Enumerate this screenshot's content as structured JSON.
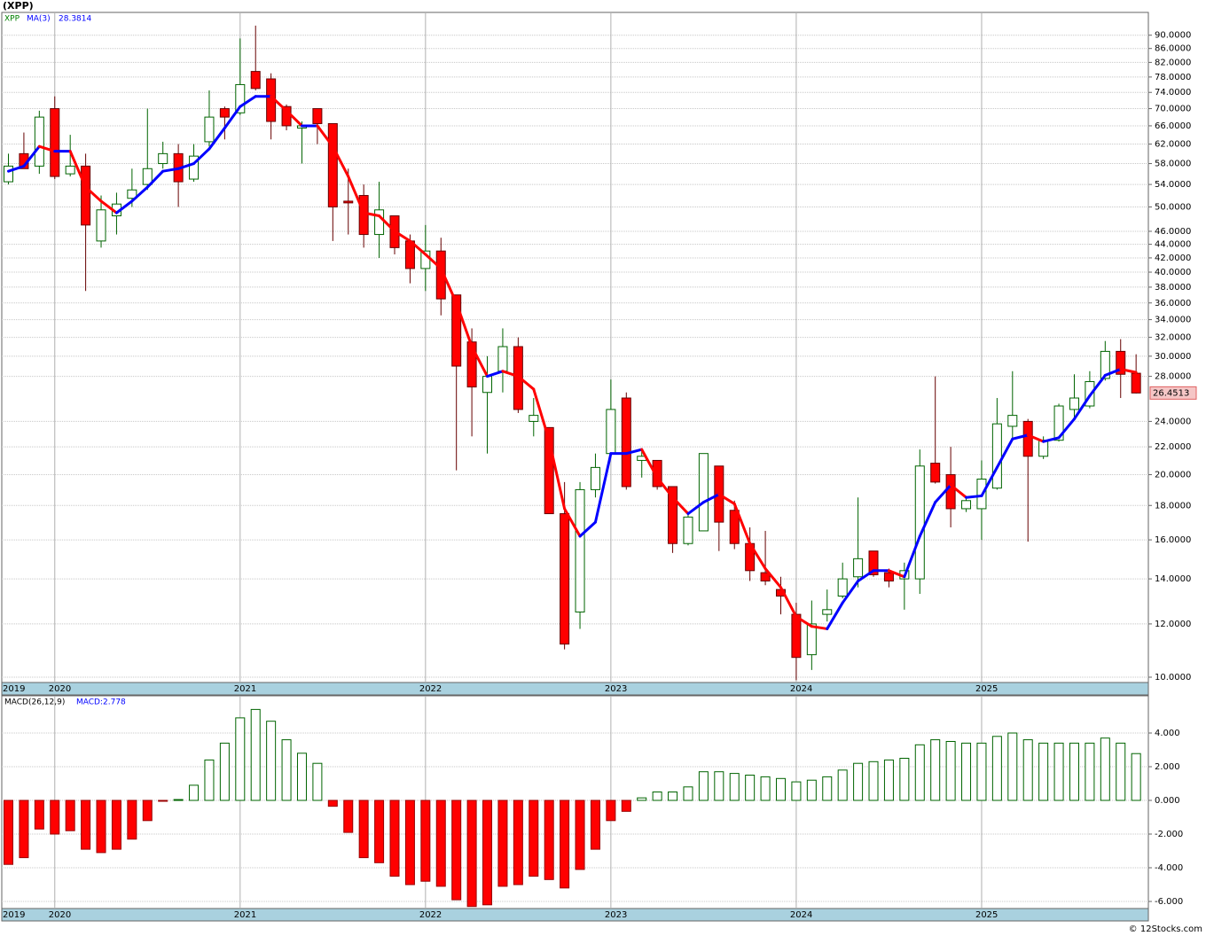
{
  "chart_data": [
    {
      "type": "candlestick",
      "title": "(XPP)",
      "symbol": "XPP",
      "categories": [
        "2019",
        null,
        null,
        "2020",
        null,
        null,
        null,
        null,
        null,
        null,
        null,
        null,
        null,
        null,
        null,
        "2021",
        null,
        null,
        null,
        null,
        null,
        null,
        null,
        null,
        null,
        null,
        null,
        "2022",
        null,
        null,
        null,
        null,
        null,
        null,
        null,
        null,
        null,
        null,
        null,
        "2023",
        null,
        null,
        null,
        null,
        null,
        null,
        null,
        null,
        null,
        null,
        null,
        "2024",
        null,
        null,
        null,
        null,
        null,
        null,
        null,
        null,
        null,
        null,
        null,
        "2025",
        null,
        null,
        null,
        null,
        null,
        null,
        null,
        null,
        null,
        null
      ],
      "open": [
        54.5,
        60,
        57.5,
        70,
        56,
        57.5,
        44.5,
        48.5,
        51.5,
        54,
        58,
        60,
        55,
        62.5,
        70,
        69,
        79.5,
        77.5,
        70.5,
        65.5,
        70,
        66.5,
        51,
        52,
        45.5,
        48.5,
        44.5,
        40.5,
        43,
        37,
        31.5,
        26.5,
        28.5,
        31,
        24,
        23.5,
        17.5,
        12.5,
        19,
        21.5,
        26,
        21,
        21,
        19.2,
        15.8,
        16.5,
        20.6,
        17.7,
        15.8,
        14.3,
        13.5,
        12.4,
        10.8,
        12.4,
        13.2,
        14.1,
        15.4,
        14.3,
        14,
        14,
        20.8,
        20,
        17.8,
        17.8,
        19.1,
        23.6,
        24,
        21.3,
        22.5,
        25,
        25.3,
        27.8,
        30.5,
        28.3
      ],
      "high": [
        60,
        64.5,
        69.5,
        73,
        64,
        60,
        52,
        52.5,
        57,
        70,
        62.5,
        62,
        62,
        74.5,
        70.5,
        89,
        93,
        79,
        71,
        67,
        70,
        66.5,
        57,
        54,
        54.5,
        48.5,
        45.5,
        47,
        45,
        37,
        33,
        30,
        33,
        32,
        26,
        23.5,
        19.5,
        19.5,
        21.5,
        27.7,
        26.5,
        21.7,
        21,
        19.2,
        17.6,
        21.5,
        20.6,
        18.3,
        16.7,
        16.5,
        14.1,
        12.9,
        13,
        13.5,
        14.8,
        18.5,
        15.4,
        14.5,
        14.8,
        21.8,
        28,
        22,
        18.6,
        21,
        26,
        28.5,
        24.2,
        22.8,
        25.5,
        28.2,
        28.5,
        31.6,
        31.8,
        30.2
      ],
      "low": [
        54,
        57,
        56,
        55,
        55.5,
        37.5,
        43.5,
        45.5,
        50,
        53,
        57,
        50,
        54.5,
        61.5,
        63,
        68.5,
        74.5,
        63,
        65,
        58,
        62,
        44.5,
        45.5,
        43.5,
        42,
        42.5,
        38.5,
        37.5,
        34.5,
        20.3,
        22.8,
        21.5,
        26.5,
        24.7,
        22.8,
        17.5,
        11,
        11.8,
        18.5,
        21.2,
        19,
        19.8,
        19,
        15.3,
        15.7,
        16.5,
        15.4,
        15.5,
        13.9,
        13.7,
        12.4,
        9.9,
        10.25,
        12.1,
        13.1,
        13.6,
        14.1,
        13.6,
        12.6,
        13.3,
        19.4,
        16.7,
        17.6,
        16,
        19,
        22.6,
        15.9,
        21.1,
        22.4,
        24.3,
        25.1,
        27.6,
        26,
        26.4
      ],
      "close": [
        57.5,
        57,
        68,
        55.5,
        57.5,
        47,
        49.5,
        50.5,
        53,
        57,
        60,
        54.5,
        59.5,
        68,
        68,
        76,
        75,
        67,
        66,
        66,
        66.5,
        50,
        50.7,
        45.5,
        49.5,
        43.5,
        40.5,
        43,
        36.5,
        29,
        27,
        28,
        31,
        25,
        24.5,
        17.5,
        11.2,
        19,
        20.5,
        25,
        19.2,
        21.3,
        19.2,
        15.8,
        17.3,
        21.5,
        17,
        15.8,
        14.4,
        13.9,
        13.2,
        10.7,
        12,
        12.6,
        14,
        15,
        14.2,
        13.9,
        14.4,
        20.6,
        19.5,
        17.8,
        18.3,
        19.7,
        23.8,
        24.5,
        21.3,
        22.5,
        25.3,
        26,
        27.5,
        30.5,
        28.2,
        26.4513
      ],
      "up_color": "#006400",
      "down_color": "#ff0000",
      "ma": {
        "name": "MA(3)",
        "rising_color": "#0000ff",
        "falling_color": "#ff0000",
        "values": [
          56.5,
          57.5,
          61.5,
          60.5,
          60.5,
          53.5,
          51,
          49,
          51,
          53.5,
          56.5,
          57,
          58,
          61,
          65.5,
          70.5,
          73,
          73,
          69.5,
          66,
          66,
          61.5,
          55.5,
          49,
          48.5,
          46,
          44.5,
          42.5,
          40.5,
          36,
          31,
          28,
          28.5,
          28,
          26.8,
          22.5,
          17.8,
          16.2,
          17,
          21.5,
          21.5,
          21.8,
          19.8,
          18.5,
          17.5,
          18.2,
          18.7,
          18.1,
          15.8,
          14.5,
          13.6,
          12.3,
          11.9,
          11.8,
          12.9,
          13.9,
          14.4,
          14.4,
          14.1,
          16.2,
          18.2,
          19.3,
          18.5,
          18.6,
          20.5,
          22.6,
          22.9,
          22.4,
          22.7,
          24.2,
          26.2,
          28.1,
          28.7,
          28.3814
        ]
      },
      "log_scale": true,
      "grid": true,
      "ylim": [
        9.82,
        97.3
      ],
      "yticks": [
        {
          "value": 10,
          "label": "10.0000"
        },
        {
          "value": 12,
          "label": "12.0000"
        },
        {
          "value": 14,
          "label": "14.0000"
        },
        {
          "value": 16,
          "label": "16.0000"
        },
        {
          "value": 18,
          "label": "18.0000"
        },
        {
          "value": 20,
          "label": "20.0000"
        },
        {
          "value": 22,
          "label": "22.0000"
        },
        {
          "value": 24,
          "label": "24.0000"
        },
        {
          "value": 28,
          "label": "28.0000"
        },
        {
          "value": 30,
          "label": "30.0000"
        },
        {
          "value": 32,
          "label": "32.0000"
        },
        {
          "value": 34,
          "label": "34.0000"
        },
        {
          "value": 36,
          "label": "36.0000"
        },
        {
          "value": 38,
          "label": "38.0000"
        },
        {
          "value": 40,
          "label": "40.0000"
        },
        {
          "value": 42,
          "label": "42.0000"
        },
        {
          "value": 44,
          "label": "44.0000"
        },
        {
          "value": 46,
          "label": "46.0000"
        },
        {
          "value": 50,
          "label": "50.0000"
        },
        {
          "value": 54,
          "label": "54.0000"
        },
        {
          "value": 58,
          "label": "58.0000"
        },
        {
          "value": 62,
          "label": "62.0000"
        },
        {
          "value": 66,
          "label": "66.0000"
        },
        {
          "value": 70,
          "label": "70.0000"
        },
        {
          "value": 74,
          "label": "74.0000"
        },
        {
          "value": 78,
          "label": "78.0000"
        },
        {
          "value": 82,
          "label": "82.0000"
        },
        {
          "value": 86,
          "label": "86.0000"
        },
        {
          "value": 90,
          "label": "90.0000"
        }
      ]
    },
    {
      "type": "bar",
      "name": "MACD(26,12,9)",
      "indicator_label": "MACD:2.778",
      "categories": [
        "2019",
        null,
        null,
        "2020",
        null,
        null,
        null,
        null,
        null,
        null,
        null,
        null,
        null,
        null,
        null,
        "2021",
        null,
        null,
        null,
        null,
        null,
        null,
        null,
        null,
        null,
        null,
        null,
        "2022",
        null,
        null,
        null,
        null,
        null,
        null,
        null,
        null,
        null,
        null,
        null,
        "2023",
        null,
        null,
        null,
        null,
        null,
        null,
        null,
        null,
        null,
        null,
        null,
        "2024",
        null,
        null,
        null,
        null,
        null,
        null,
        null,
        null,
        null,
        null,
        null,
        "2025",
        null,
        null,
        null,
        null,
        null,
        null,
        null,
        null,
        null,
        null
      ],
      "values": [
        -3.8,
        -3.4,
        -1.7,
        -2.0,
        -1.8,
        -2.9,
        -3.1,
        -2.9,
        -2.3,
        -1.2,
        -0.05,
        0.05,
        0.9,
        2.4,
        3.4,
        4.9,
        5.4,
        4.7,
        3.6,
        2.8,
        2.2,
        -0.35,
        -1.9,
        -3.4,
        -3.7,
        -4.5,
        -5.0,
        -4.8,
        -5.1,
        -5.9,
        -6.3,
        -6.2,
        -5.1,
        -5.0,
        -4.5,
        -4.7,
        -5.2,
        -4.1,
        -2.9,
        -1.2,
        -0.65,
        0.15,
        0.5,
        0.5,
        0.8,
        1.7,
        1.7,
        1.6,
        1.5,
        1.4,
        1.3,
        1.1,
        1.2,
        1.4,
        1.8,
        2.2,
        2.3,
        2.4,
        2.5,
        3.3,
        3.6,
        3.5,
        3.4,
        3.4,
        3.8,
        4.0,
        3.6,
        3.4,
        3.4,
        3.4,
        3.4,
        3.7,
        3.4,
        2.778
      ],
      "positive_color": "#006400",
      "negative_color": "#ff0000",
      "grid": true,
      "ylim": [
        -6.42,
        6.21
      ],
      "yticks": [
        {
          "value": -6,
          "label": "-6.000"
        },
        {
          "value": -4,
          "label": "-4.000"
        },
        {
          "value": -2,
          "label": "-2.000"
        },
        {
          "value": 0,
          "label": "0.000"
        },
        {
          "value": 2,
          "label": "2.000"
        },
        {
          "value": 4,
          "label": "4.000"
        }
      ]
    }
  ],
  "footer": "© 12Stocks.com"
}
